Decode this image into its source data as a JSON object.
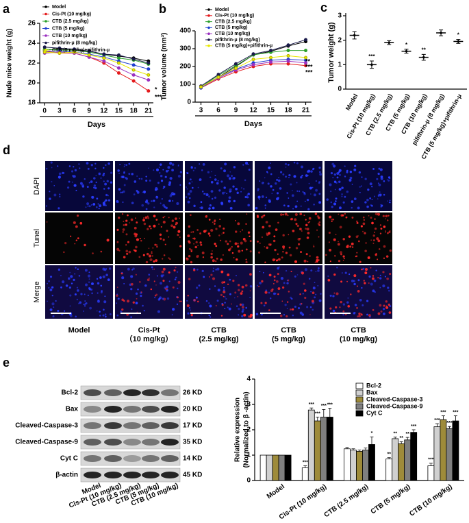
{
  "panel_labels": [
    "a",
    "b",
    "c",
    "d",
    "e"
  ],
  "chart_data": [
    {
      "type": "line",
      "xlabel": "Days",
      "ylabel": "Nude mice weight (g)",
      "x": [
        0,
        3,
        6,
        9,
        12,
        15,
        18,
        21
      ],
      "xlim": [
        -1,
        22
      ],
      "xticks": [
        0,
        3,
        6,
        9,
        12,
        15,
        18,
        21
      ],
      "ylim": [
        18,
        26
      ],
      "yticks": [
        18,
        20,
        22,
        24,
        26
      ],
      "legend": "top-left",
      "series": [
        {
          "name": "Model",
          "color": "#000000",
          "values": [
            23.3,
            23.4,
            23.3,
            23.2,
            22.9,
            22.7,
            22.5,
            22.2
          ]
        },
        {
          "name": "Cis-Pt (10 mg/kg)",
          "color": "#e41a1c",
          "values": [
            23.2,
            23.0,
            23.0,
            22.6,
            22.0,
            21.0,
            20.2,
            19.2
          ]
        },
        {
          "name": "CTB (2.5 mg/kg)",
          "color": "#2ca02c",
          "values": [
            23.4,
            23.3,
            23.3,
            23.1,
            22.8,
            22.5,
            22.3,
            21.9
          ]
        },
        {
          "name": "CTB (5 mg/kg)",
          "color": "#1f3fd0",
          "values": [
            23.2,
            23.2,
            23.1,
            22.9,
            22.6,
            22.2,
            21.8,
            21.4
          ]
        },
        {
          "name": "CTB (10 mg/kg)",
          "color": "#9b30c0",
          "values": [
            23.0,
            23.1,
            23.0,
            22.6,
            22.2,
            21.5,
            20.8,
            20.3
          ]
        },
        {
          "name": "pifithrin-μ (8 mg/kg)",
          "color": "#1a1a4a",
          "values": [
            23.6,
            23.5,
            23.4,
            23.2,
            22.9,
            22.8,
            22.4,
            22.0
          ]
        },
        {
          "name": "CTB (5 mg/kg)+pifithrin-μ",
          "color": "#e8e800",
          "values": [
            23.1,
            23.0,
            23.1,
            22.8,
            22.5,
            22.0,
            21.3,
            20.8
          ]
        }
      ],
      "annotations": [
        "*",
        "***"
      ]
    },
    {
      "type": "line",
      "xlabel": "Days",
      "ylabel": "Tumor volume (mm³)",
      "x": [
        3,
        6,
        9,
        12,
        15,
        18,
        21
      ],
      "xlim": [
        2,
        22
      ],
      "xticks": [
        3,
        6,
        9,
        12,
        15,
        18,
        21
      ],
      "ylim": [
        0,
        400
      ],
      "yticks": [
        0,
        100,
        200,
        300,
        400
      ],
      "legend": "top-left",
      "series": [
        {
          "name": "Model",
          "color": "#000000",
          "values": [
            85,
            140,
            200,
            265,
            285,
            315,
            340
          ]
        },
        {
          "name": "Cis-Pt (10 mg/kg)",
          "color": "#e41a1c",
          "values": [
            80,
            130,
            170,
            200,
            215,
            215,
            205
          ]
        },
        {
          "name": "CTB (2.5 mg/kg)",
          "color": "#2ca02c",
          "values": [
            85,
            150,
            205,
            265,
            280,
            290,
            290
          ]
        },
        {
          "name": "CTB (5 mg/kg)",
          "color": "#1f3fd0",
          "values": [
            80,
            140,
            185,
            220,
            235,
            240,
            235
          ]
        },
        {
          "name": "CTB (10 mg/kg)",
          "color": "#9b30c0",
          "values": [
            85,
            135,
            180,
            210,
            225,
            230,
            220
          ]
        },
        {
          "name": "pifithrin-μ (8 mg/kg)",
          "color": "#1a1a4a",
          "values": [
            90,
            155,
            215,
            270,
            290,
            320,
            350
          ]
        },
        {
          "name": "CTB (5 mg/kg)+pifithrin-μ",
          "color": "#e8e800",
          "values": [
            85,
            140,
            190,
            240,
            250,
            260,
            250
          ]
        }
      ],
      "annotations": [
        "**",
        "***",
        "***"
      ]
    },
    {
      "type": "dot",
      "ylabel": "Tumor weight (g)",
      "categories": [
        "Model",
        "Cis-Pt (10 mg/kg)",
        "CTB (2.5 mg/kg)",
        "CTB (5 mg/kg)",
        "CTB (10 mg/kg)",
        "pifithrin-μ (8 mg/kg)",
        "CTB (5 mg/kg)+pifithrin-μ"
      ],
      "values": [
        2.2,
        1.0,
        1.9,
        1.55,
        1.3,
        2.3,
        1.95
      ],
      "errors": [
        0.15,
        0.15,
        0.08,
        0.08,
        0.12,
        0.12,
        0.08
      ],
      "significance": [
        null,
        "***",
        null,
        "*",
        "**",
        null,
        "*"
      ],
      "ylim": [
        0,
        3
      ],
      "yticks": [
        0,
        1,
        2,
        3
      ],
      "color": "#000000"
    },
    {
      "type": "grouped-bar",
      "ylabel": [
        "Relative expression",
        "(Normalized to β -actin)"
      ],
      "categories": [
        "Model",
        "Cis-Pt (10 mg/kg)",
        "CTB (2.5 mg/kg)",
        "CTB (5 mg/kg)",
        "CTB (10 mg/kg)"
      ],
      "ylim": [
        0,
        4
      ],
      "yticks": [
        0,
        1,
        2,
        3,
        4
      ],
      "legend": "top-right",
      "series": [
        {
          "name": "Bcl-2",
          "color": "#ffffff",
          "values": [
            1,
            0.5,
            1.25,
            0.85,
            0.58
          ],
          "errors": [
            0,
            0.08,
            0.05,
            0.05,
            0.1
          ],
          "significance": [
            null,
            "***",
            null,
            "**",
            "***"
          ]
        },
        {
          "name": "Bax",
          "color": "#d0d0d0",
          "values": [
            1,
            2.78,
            1.2,
            1.65,
            2.12
          ],
          "errors": [
            0,
            0.08,
            0.05,
            0.06,
            0.12
          ],
          "significance": [
            null,
            "***",
            null,
            "**",
            "***"
          ]
        },
        {
          "name": "Cleaved-Caspase-3",
          "color": "#9e8b3a",
          "values": [
            1,
            2.35,
            1.15,
            1.45,
            2.4
          ],
          "errors": [
            0,
            0.15,
            0.05,
            0.08,
            0.15
          ],
          "significance": [
            null,
            "***",
            null,
            "**",
            "***"
          ]
        },
        {
          "name": "Cleaved-Caspase-9",
          "color": "#7f7f7f",
          "values": [
            1,
            2.5,
            1.2,
            1.6,
            2.05
          ],
          "errors": [
            0,
            0.3,
            0.08,
            0.1,
            0.08
          ],
          "significance": [
            null,
            "***",
            null,
            "**",
            "***"
          ]
        },
        {
          "name": "Cyt C",
          "color": "#000000",
          "values": [
            1,
            2.5,
            1.42,
            1.9,
            2.35
          ],
          "errors": [
            0,
            0.35,
            0.3,
            0.1,
            0.2
          ],
          "significance": [
            null,
            "***",
            "*",
            "***",
            "***"
          ]
        }
      ]
    }
  ],
  "tunel": {
    "rows": [
      "DAPI",
      "Tunel",
      "Merge"
    ],
    "columns": [
      [
        "Model"
      ],
      [
        "Cis-Pt",
        "（10 mg/kg）"
      ],
      [
        "CTB",
        "(2.5 mg/kg)"
      ],
      [
        "CTB",
        "(5 mg/kg)"
      ],
      [
        "CTB",
        "(10 mg/kg)"
      ]
    ]
  },
  "blot": {
    "proteins": [
      "Bcl-2",
      "Bax",
      "Cleaved-Caspase-3",
      "Cleaved-Caspase-9",
      "Cyt C",
      "β-actin"
    ],
    "sizes": [
      "26 KD",
      "20 KD",
      "17 KD",
      "35 KD",
      "14 KD",
      "45 KD"
    ],
    "lanes": [
      "Model",
      "Cis-Pt (10 mg/kg)",
      "CTB (2.5 mg/kg)",
      "CTB (5 mg/kg)",
      "CTB (10 mg/kg)"
    ]
  }
}
